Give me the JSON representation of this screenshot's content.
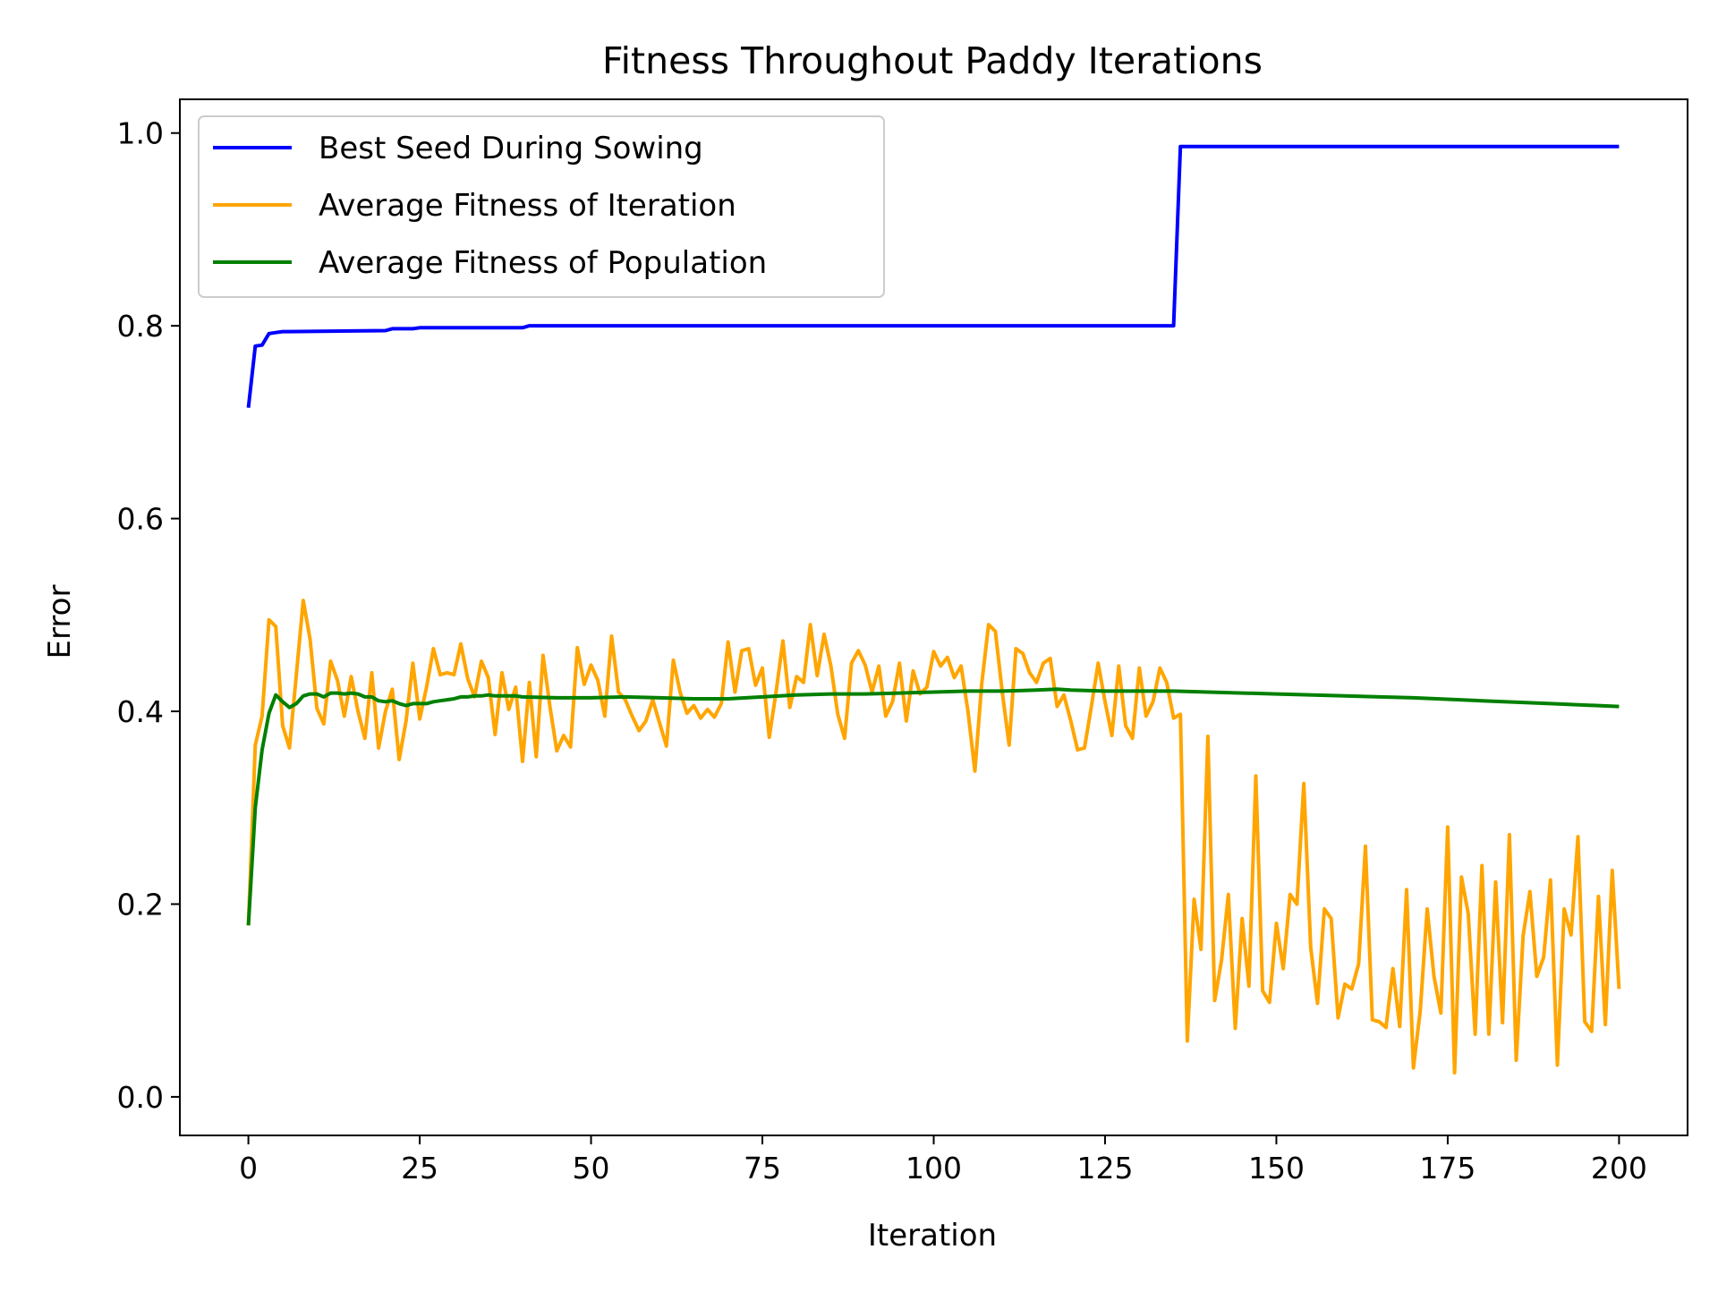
{
  "chart_data": {
    "type": "line",
    "title": "Fitness Throughout Paddy Iterations",
    "xlabel": "Iteration",
    "ylabel": "Error",
    "xlim": [
      -10,
      210
    ],
    "ylim": [
      -0.04,
      1.035
    ],
    "xticks": [
      0,
      25,
      50,
      75,
      100,
      125,
      150,
      175,
      200
    ],
    "yticks": [
      0.0,
      0.2,
      0.4,
      0.6,
      0.8,
      1.0
    ],
    "xtick_labels": [
      "0",
      "25",
      "50",
      "75",
      "100",
      "125",
      "150",
      "175",
      "200"
    ],
    "ytick_labels": [
      "0.0",
      "0.2",
      "0.4",
      "0.6",
      "0.8",
      "1.0"
    ],
    "grid": false,
    "legend_position": "top-left",
    "series": [
      {
        "name": "Best Seed During Sowing",
        "color": "#0000ff",
        "x": [
          0,
          1,
          2,
          3,
          4,
          5,
          6,
          20,
          21,
          24,
          25,
          40,
          41,
          135,
          136,
          200
        ],
        "values": [
          0.715,
          0.779,
          0.78,
          0.792,
          0.793,
          0.794,
          0.794,
          0.795,
          0.797,
          0.797,
          0.798,
          0.798,
          0.8,
          0.8,
          0.986,
          0.986
        ]
      },
      {
        "name": "Average Fitness of Iteration",
        "color": "#ffa500",
        "x": [
          0,
          1,
          2,
          3,
          4,
          5,
          6,
          7,
          8,
          9,
          10,
          11,
          12,
          13,
          14,
          15,
          16,
          17,
          18,
          19,
          20,
          21,
          22,
          23,
          24,
          25,
          26,
          27,
          28,
          29,
          30,
          31,
          32,
          33,
          34,
          35,
          36,
          37,
          38,
          39,
          40,
          41,
          42,
          43,
          44,
          45,
          46,
          47,
          48,
          49,
          50,
          51,
          52,
          53,
          54,
          55,
          56,
          57,
          58,
          59,
          60,
          61,
          62,
          63,
          64,
          65,
          66,
          67,
          68,
          69,
          70,
          71,
          72,
          73,
          74,
          75,
          76,
          77,
          78,
          79,
          80,
          81,
          82,
          83,
          84,
          85,
          86,
          87,
          88,
          89,
          90,
          91,
          92,
          93,
          94,
          95,
          96,
          97,
          98,
          99,
          100,
          101,
          102,
          103,
          104,
          105,
          106,
          107,
          108,
          109,
          110,
          111,
          112,
          113,
          114,
          115,
          116,
          117,
          118,
          119,
          120,
          121,
          122,
          123,
          124,
          125,
          126,
          127,
          128,
          129,
          130,
          131,
          132,
          133,
          134,
          135,
          136,
          137,
          138,
          139,
          140,
          141,
          142,
          143,
          144,
          145,
          146,
          147,
          148,
          149,
          150,
          151,
          152,
          153,
          154,
          155,
          156,
          157,
          158,
          159,
          160,
          161,
          162,
          163,
          164,
          165,
          166,
          167,
          168,
          169,
          170,
          171,
          172,
          173,
          174,
          175,
          176,
          177,
          178,
          179,
          180,
          181,
          182,
          183,
          184,
          185,
          186,
          187,
          188,
          189,
          190,
          191,
          192,
          193,
          194,
          195,
          196,
          197,
          198,
          199,
          200
        ],
        "values": [
          0.178,
          0.365,
          0.395,
          0.495,
          0.488,
          0.385,
          0.362,
          0.438,
          0.515,
          0.475,
          0.403,
          0.387,
          0.452,
          0.432,
          0.395,
          0.436,
          0.4,
          0.372,
          0.44,
          0.362,
          0.4,
          0.423,
          0.35,
          0.39,
          0.45,
          0.392,
          0.425,
          0.465,
          0.438,
          0.44,
          0.438,
          0.47,
          0.434,
          0.415,
          0.452,
          0.435,
          0.376,
          0.44,
          0.402,
          0.425,
          0.348,
          0.43,
          0.353,
          0.458,
          0.405,
          0.359,
          0.375,
          0.363,
          0.466,
          0.428,
          0.448,
          0.432,
          0.395,
          0.478,
          0.42,
          0.412,
          0.395,
          0.38,
          0.39,
          0.412,
          0.388,
          0.364,
          0.453,
          0.42,
          0.398,
          0.406,
          0.393,
          0.402,
          0.394,
          0.408,
          0.472,
          0.42,
          0.463,
          0.465,
          0.427,
          0.445,
          0.373,
          0.42,
          0.473,
          0.404,
          0.436,
          0.43,
          0.49,
          0.437,
          0.48,
          0.447,
          0.397,
          0.372,
          0.45,
          0.463,
          0.448,
          0.42,
          0.447,
          0.395,
          0.41,
          0.45,
          0.39,
          0.442,
          0.418,
          0.425,
          0.462,
          0.447,
          0.456,
          0.435,
          0.447,
          0.4,
          0.338,
          0.428,
          0.49,
          0.483,
          0.42,
          0.365,
          0.465,
          0.46,
          0.44,
          0.43,
          0.45,
          0.455,
          0.405,
          0.417,
          0.39,
          0.36,
          0.362,
          0.405,
          0.45,
          0.41,
          0.375,
          0.447,
          0.385,
          0.372,
          0.445,
          0.395,
          0.41,
          0.445,
          0.43,
          0.393,
          0.397,
          0.058,
          0.205,
          0.153,
          0.374,
          0.1,
          0.142,
          0.21,
          0.071,
          0.185,
          0.115,
          0.333,
          0.11,
          0.098,
          0.18,
          0.133,
          0.21,
          0.2,
          0.325,
          0.155,
          0.097,
          0.195,
          0.185,
          0.082,
          0.117,
          0.112,
          0.138,
          0.26,
          0.08,
          0.078,
          0.072,
          0.133,
          0.073,
          0.215,
          0.03,
          0.09,
          0.195,
          0.125,
          0.087,
          0.28,
          0.025,
          0.228,
          0.19,
          0.065,
          0.24,
          0.065,
          0.223,
          0.077,
          0.272,
          0.038,
          0.167,
          0.213,
          0.125,
          0.145,
          0.225,
          0.033,
          0.195,
          0.168,
          0.27,
          0.078,
          0.068,
          0.208,
          0.075,
          0.235,
          0.112
        ]
      },
      {
        "name": "Average Fitness of Population",
        "color": "#008000",
        "x": [
          0,
          1,
          2,
          3,
          4,
          5,
          6,
          7,
          8,
          9,
          10,
          11,
          12,
          13,
          14,
          15,
          16,
          17,
          18,
          19,
          20,
          21,
          22,
          23,
          24,
          25,
          26,
          27,
          28,
          29,
          30,
          31,
          32,
          33,
          34,
          35,
          36,
          37,
          38,
          39,
          40,
          45,
          50,
          55,
          60,
          65,
          70,
          75,
          80,
          85,
          90,
          95,
          100,
          105,
          110,
          115,
          118,
          120,
          125,
          130,
          135,
          140,
          150,
          160,
          170,
          180,
          190,
          200
        ],
        "values": [
          0.178,
          0.3,
          0.36,
          0.398,
          0.417,
          0.41,
          0.404,
          0.408,
          0.416,
          0.418,
          0.418,
          0.415,
          0.419,
          0.419,
          0.418,
          0.419,
          0.418,
          0.415,
          0.415,
          0.411,
          0.41,
          0.411,
          0.408,
          0.406,
          0.408,
          0.408,
          0.408,
          0.41,
          0.411,
          0.412,
          0.413,
          0.415,
          0.415,
          0.416,
          0.416,
          0.417,
          0.416,
          0.416,
          0.416,
          0.416,
          0.415,
          0.414,
          0.414,
          0.415,
          0.414,
          0.413,
          0.413,
          0.415,
          0.417,
          0.418,
          0.418,
          0.419,
          0.42,
          0.421,
          0.421,
          0.422,
          0.423,
          0.422,
          0.421,
          0.421,
          0.421,
          0.42,
          0.418,
          0.416,
          0.414,
          0.411,
          0.408,
          0.405
        ]
      }
    ]
  }
}
